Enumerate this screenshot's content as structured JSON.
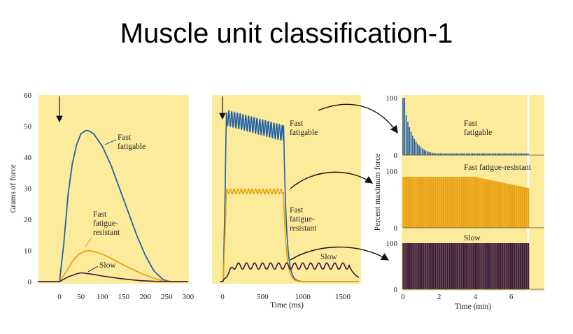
{
  "slide_title": "Muscle unit classification-1",
  "colors": {
    "panel_bg": "#fdeb9c",
    "fast_fatigable": "#1f5fa8",
    "fast_fatigue_resistant": "#e8a010",
    "slow": "#3a1a3a",
    "arrow": "#111111"
  },
  "chart_data": [
    {
      "type": "line",
      "title": "",
      "xlabel": "",
      "ylabel": "Grams of force",
      "xlim": [
        -50,
        300
      ],
      "ylim": [
        0,
        60
      ],
      "x_ticks": [
        0,
        50,
        100,
        150,
        200,
        250,
        300
      ],
      "y_ticks": [
        0,
        10,
        20,
        30,
        40,
        50,
        60
      ],
      "stimulus_marker_x": 0,
      "series": [
        {
          "name": "Fast fatigable",
          "x": [
            -50,
            0,
            10,
            20,
            30,
            40,
            50,
            60,
            65,
            70,
            80,
            100,
            120,
            140,
            160,
            180,
            200,
            220,
            240,
            250,
            260,
            300
          ],
          "y": [
            0,
            0,
            12,
            28,
            38,
            44,
            47.5,
            48.5,
            48.6,
            48.4,
            47.5,
            43.5,
            37.5,
            30,
            22.5,
            15,
            8.5,
            3.5,
            0.8,
            0.2,
            0,
            0
          ]
        },
        {
          "name": "Fast fatigue-resistant",
          "x": [
            -50,
            0,
            15,
            30,
            45,
            60,
            70,
            80,
            100,
            120,
            140,
            160,
            180,
            200,
            220,
            240,
            250,
            300
          ],
          "y": [
            0,
            0,
            3,
            6.5,
            8.8,
            9.8,
            9.9,
            9.7,
            8.8,
            7.5,
            6,
            4.6,
            3.3,
            2.1,
            1.1,
            0.3,
            0,
            0
          ]
        },
        {
          "name": "Slow",
          "x": [
            -50,
            0,
            20,
            40,
            50,
            60,
            80,
            100,
            130,
            160,
            190,
            220,
            250,
            300
          ],
          "y": [
            0,
            0,
            1.5,
            2.5,
            2.8,
            2.7,
            2.3,
            1.8,
            1.2,
            0.7,
            0.3,
            0.1,
            0,
            0
          ]
        }
      ],
      "labels": {
        "fast_fatigable": [
          "Fast",
          "fatigable"
        ],
        "fast_fatigue_resistant": [
          "Fast",
          "fatigue-",
          "resistant"
        ],
        "slow": [
          "Slow"
        ]
      }
    },
    {
      "type": "line",
      "title": "",
      "xlabel": "Time (ms)",
      "ylabel": "",
      "xlim": [
        -30,
        1700
      ],
      "x_ticks": [
        0,
        500,
        1000,
        1500
      ],
      "stimulus_marker_x": 0,
      "series": [
        {
          "name": "Fast fatigable",
          "onset": 10,
          "offset": 760,
          "plateau": 53,
          "ripple": 5,
          "ripple_period": 35
        },
        {
          "name": "Fast fatigue-resistant",
          "onset": 10,
          "offset": 760,
          "plateau": 29,
          "ripple": 1.5,
          "ripple_period": 45
        },
        {
          "name": "Slow",
          "onset": 0,
          "offset": 1580,
          "plateau": 5,
          "ripple": 2,
          "ripple_period": 100
        }
      ],
      "labels": {
        "fast_fatigable": [
          "Fast",
          "fatigable"
        ],
        "fast_fatigue_resistant": [
          "Fast",
          "fatigue-",
          "resistant"
        ],
        "slow": [
          "Slow"
        ]
      }
    },
    {
      "type": "bar",
      "title": "",
      "xlabel": "Time (min)",
      "ylabel": "Percent maximum force",
      "xlim": [
        0,
        7
      ],
      "x_ticks": [
        0,
        2,
        4,
        6
      ],
      "y_ticks": [
        0,
        100
      ],
      "series": [
        {
          "name": "Fast fatigable",
          "levels": "rapid decline from 100 to about 5 within 1.5 min"
        },
        {
          "name": "Fast fatigue-resistant",
          "levels": "about 90 for 4 min, declining to about 70 by 7 min"
        },
        {
          "name": "Slow",
          "levels": "100 throughout"
        }
      ],
      "labels": {
        "fast_fatigable": [
          "Fast",
          "fatigable"
        ],
        "fast_fatigue_resistant": [
          "Fast fatigue-resistant"
        ],
        "slow": [
          "Slow"
        ]
      }
    }
  ]
}
